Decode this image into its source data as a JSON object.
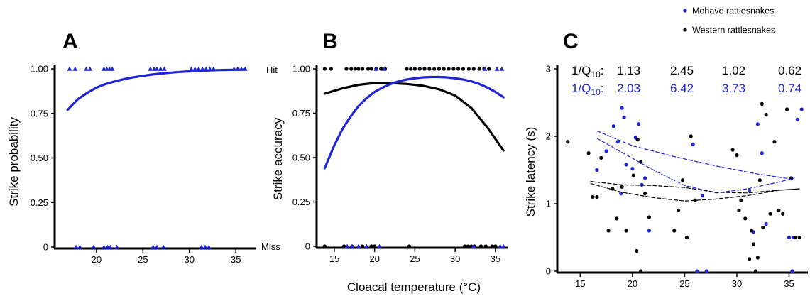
{
  "colors": {
    "mohave": "#1f24d6",
    "western": "#000000"
  },
  "legend": {
    "mohave": "Mohave rattlesnakes",
    "western": "Western rattlesnakes"
  },
  "shared_xlabel": "Cloacal temperature (°C)",
  "q10": {
    "label": "1/Q",
    "sub": "10",
    "colon": ":",
    "western_values": [
      "1.13",
      "2.45",
      "1.02",
      "0.62"
    ],
    "mohave_values": [
      "2.03",
      "6.42",
      "3.73",
      "0.74"
    ]
  },
  "chart_data": [
    {
      "panel": "A",
      "type": "scatter",
      "ylabel": "Strike probability",
      "xlim": [
        15.5,
        37.2
      ],
      "ylim": [
        0,
        1
      ],
      "xticks": [
        20,
        25,
        30,
        35
      ],
      "yticks": [
        0,
        0.25,
        0.5,
        0.75,
        1.0
      ],
      "ytick_labels": [
        "0",
        "0.25",
        "0.50",
        "0.75",
        "1.00"
      ],
      "series": [
        {
          "marker": "triangle",
          "color": "#1f24d6",
          "hit_x": [
            17.1,
            17.7,
            18.9,
            19.3,
            20.8,
            21.1,
            21.4,
            21.7,
            25.8,
            26.2,
            26.5,
            26.9,
            27.3,
            30.2,
            30.6,
            31.0,
            31.4,
            31.8,
            32.2,
            32.6,
            34.8,
            35.2,
            35.6,
            36.0
          ],
          "miss_x": [
            17.8,
            18.2,
            19.7,
            20.8,
            21.2,
            21.5,
            22.2,
            26.1,
            26.5,
            27.2,
            31.3,
            31.7,
            32.1
          ],
          "fit_x": [
            16.9,
            18,
            19,
            20,
            21,
            22,
            23,
            24,
            25,
            26,
            27,
            28,
            29,
            30,
            31,
            32,
            33,
            34,
            35,
            36
          ],
          "fit_y": [
            0.77,
            0.83,
            0.865,
            0.895,
            0.915,
            0.93,
            0.943,
            0.953,
            0.961,
            0.968,
            0.974,
            0.979,
            0.983,
            0.986,
            0.989,
            0.991,
            0.993,
            0.994,
            0.995,
            0.996
          ]
        }
      ]
    },
    {
      "panel": "B",
      "type": "scatter",
      "ylabel": "Strike accuracy",
      "right_labels": [
        "Hit",
        "Miss"
      ],
      "xlim": [
        12.8,
        36.6
      ],
      "ylim": [
        0,
        1
      ],
      "xticks": [
        15,
        20,
        25,
        30,
        35
      ],
      "yticks": [
        0,
        0.25,
        0.5,
        0.75,
        1.0
      ],
      "ytick_labels": [
        "0",
        "0.25",
        "0.50",
        "0.75",
        "1.00"
      ],
      "series": [
        {
          "name": "Western rattlesnakes",
          "marker": "circle",
          "color": "#000000",
          "hit_x": [
            13.8,
            14.6,
            16.5,
            17.1,
            17.6,
            18.0,
            18.5,
            19.2,
            19.6,
            20.2,
            20.8,
            21.3,
            24.0,
            24.5,
            25.0,
            25.6,
            26.2,
            26.8,
            27.4,
            28.0,
            28.6,
            29.2,
            29.8,
            30.4,
            31.0,
            31.7,
            32.3,
            33.0,
            33.6,
            34.2
          ],
          "miss_x": [
            13.8,
            16.2,
            17.2,
            18.5,
            19.6,
            20.0,
            24.3,
            31.2,
            31.6,
            32.0,
            32.4,
            33.2,
            33.8,
            34.6,
            35.0
          ],
          "fit_x": [
            13.8,
            16,
            18,
            20,
            22,
            24,
            26,
            28,
            30,
            32,
            34,
            36
          ],
          "fit_y": [
            0.86,
            0.89,
            0.91,
            0.92,
            0.92,
            0.915,
            0.905,
            0.885,
            0.85,
            0.78,
            0.67,
            0.54
          ]
        },
        {
          "name": "Mohave rattlesnakes",
          "marker": "triangle",
          "color": "#1f24d6",
          "hit_x": [
            20.2,
            21.2,
            33.7,
            35.2,
            35.8
          ],
          "miss_x": [
            16.6,
            17.2,
            18.0,
            19.0,
            20.6,
            32.3,
            35.6,
            36.0
          ],
          "fit_x": [
            13.8,
            15,
            16,
            17,
            18,
            19,
            20,
            21,
            22,
            23,
            24,
            25,
            26,
            27,
            28,
            29,
            30,
            31,
            32,
            33,
            34,
            35,
            36
          ],
          "fit_y": [
            0.44,
            0.57,
            0.66,
            0.73,
            0.79,
            0.835,
            0.87,
            0.895,
            0.915,
            0.93,
            0.94,
            0.947,
            0.952,
            0.954,
            0.954,
            0.952,
            0.947,
            0.94,
            0.93,
            0.915,
            0.895,
            0.87,
            0.84
          ]
        }
      ]
    },
    {
      "panel": "C",
      "type": "scatter",
      "ylabel": "Strike latency (s)",
      "xlim": [
        12.8,
        36.8
      ],
      "ylim": [
        0,
        3
      ],
      "xticks": [
        15,
        20,
        25,
        30,
        35
      ],
      "yticks": [
        0,
        1,
        2,
        3
      ],
      "ytick_labels": [
        "0",
        "1",
        "2",
        "3"
      ],
      "series": [
        {
          "name": "Mohave rattlesnakes",
          "color": "#1f24d6",
          "x": [
            16.6,
            17.5,
            18.2,
            18.6,
            18.9,
            19.0,
            19.2,
            19.4,
            20.0,
            20.3,
            20.6,
            20.9,
            21.2,
            21.6,
            25.8,
            26.2,
            26.7,
            27.1,
            31.2,
            31.6,
            32.0,
            32.4,
            32.8,
            35.0,
            35.4,
            35.8,
            36.2,
            34.8,
            35.3,
            35.6
          ],
          "y": [
            1.5,
            1.78,
            2.15,
            1.92,
            1.15,
            2.42,
            2.28,
            1.58,
            1.52,
            1.98,
            2.18,
            1.28,
            1.38,
            0.6,
            1.88,
            0,
            1.12,
            0,
            1.2,
            0.58,
            2.18,
            1.75,
            0.7,
            0.5,
            0.5,
            2.25,
            2.4,
            2.4,
            0,
            0.5
          ]
        },
        {
          "name": "Western rattlesnakes",
          "color": "#000000",
          "x": [
            13.8,
            15.8,
            16.2,
            16.6,
            17.0,
            17.7,
            18.1,
            18.5,
            19.0,
            19.4,
            20.1,
            20.5,
            20.8,
            21.2,
            21.6,
            24.0,
            24.4,
            24.8,
            25.2,
            25.6,
            26.0,
            29.6,
            30.0,
            30.4,
            30.8,
            31.2,
            31.6,
            32.0,
            32.4,
            32.8,
            33.2,
            33.6,
            34.0,
            34.4,
            34.8,
            35.2,
            35.6,
            36.0,
            30.2,
            31.4,
            32.2
          ],
          "y": [
            1.92,
            1.75,
            1.1,
            1.1,
            1.68,
            0.6,
            1.22,
            0.78,
            1.25,
            0.6,
            1.42,
            1.95,
            1.62,
            1.15,
            0.8,
            0.6,
            0.9,
            1.35,
            0.5,
            2.0,
            1.05,
            1.8,
            1.72,
            1.05,
            0.78,
            0.18,
            0.4,
            0.2,
            2.48,
            2.32,
            0.85,
            1.92,
            0.9,
            0.85,
            2.4,
            1.38,
            0.5,
            0.5,
            0.9,
            0.6,
            1.35
          ],
          "extra_x": [
            20.4,
            20.8,
            31.8,
            32.5
          ],
          "extra_y": [
            0.3,
            0.0,
            0.0,
            0.65
          ]
        }
      ],
      "fits": [
        {
          "color": "#1f24d6",
          "x": [
            16.6,
            20,
            24,
            28,
            32,
            35.5
          ],
          "y": [
            2.08,
            1.86,
            1.7,
            1.56,
            1.44,
            1.36
          ]
        },
        {
          "color": "#1f24d6",
          "x": [
            16.6,
            19,
            22,
            25,
            28,
            31,
            34,
            35.5
          ],
          "y": [
            1.97,
            1.76,
            1.5,
            1.27,
            1.16,
            1.22,
            1.32,
            1.38
          ]
        },
        {
          "color": "#000000",
          "x": [
            16.0,
            19,
            22,
            25,
            28,
            31,
            34,
            36
          ],
          "y": [
            1.33,
            1.28,
            1.27,
            1.24,
            1.17,
            1.16,
            1.2,
            1.22
          ]
        },
        {
          "color": "#000000",
          "x": [
            16.0,
            19,
            22,
            25,
            28,
            31,
            34,
            36
          ],
          "y": [
            1.3,
            1.17,
            1.09,
            1.04,
            1.07,
            1.12,
            1.2,
            1.22
          ]
        }
      ]
    }
  ]
}
